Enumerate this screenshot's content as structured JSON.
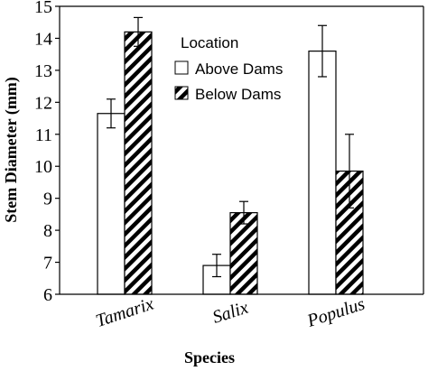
{
  "chart_data": {
    "type": "bar",
    "categories": [
      "Tamarix",
      "Salix",
      "Populus"
    ],
    "series": [
      {
        "name": "Above Dams",
        "values": [
          11.65,
          6.9,
          13.6
        ],
        "errors": [
          0.45,
          0.35,
          0.8
        ],
        "fill": "white"
      },
      {
        "name": "Below Dams",
        "values": [
          14.2,
          8.55,
          9.85
        ],
        "errors": [
          0.45,
          0.35,
          1.15
        ],
        "fill": "hatch"
      }
    ],
    "xlabel": "Species",
    "ylabel": "Stem Diameter (mm)",
    "ylim": [
      6,
      15
    ],
    "yticks": [
      "6",
      "7",
      "8",
      "9",
      "10",
      "11",
      "12",
      "13",
      "14",
      "15"
    ],
    "legend_title": "Location",
    "legend_position": "top-center",
    "grid": false
  }
}
